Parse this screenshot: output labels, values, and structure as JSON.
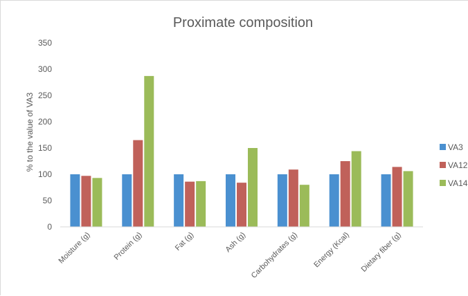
{
  "chart_data": {
    "type": "bar",
    "title": "Proximate composition",
    "xlabel": "",
    "ylabel": "% to the value of VA3",
    "ylim": [
      0,
      350
    ],
    "yticks": [
      0,
      50,
      100,
      150,
      200,
      250,
      300,
      350
    ],
    "grid": false,
    "legend_position": "right",
    "categories": [
      "Moisture (g)",
      "Protein (g)",
      "Fat (g)",
      "Ash (g)",
      "Carbohydrates (g)",
      "Energy (Kcal)",
      "Dietary fiber (g)"
    ],
    "series": [
      {
        "name": "VA3",
        "color": "#4a90d0",
        "values": [
          100,
          100,
          100,
          100,
          100,
          100,
          100
        ]
      },
      {
        "name": "VA12",
        "color": "#c0615a",
        "values": [
          97,
          165,
          86,
          84,
          109,
          125,
          114
        ]
      },
      {
        "name": "VA14",
        "color": "#9bbb59",
        "values": [
          93,
          287,
          87,
          150,
          80,
          144,
          106
        ]
      }
    ]
  }
}
